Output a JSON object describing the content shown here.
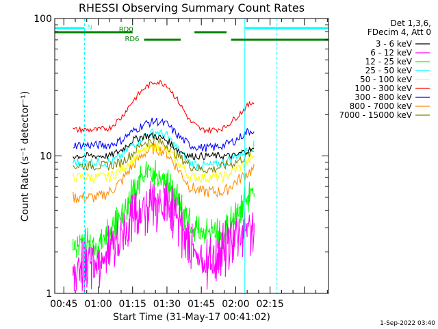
{
  "chart_data": {
    "type": "line",
    "title": "RHESSI Observing Summary Count Rates",
    "xlabel": "Start Time (31-May-17 00:41:02)",
    "ylabel": "Count Rate (s⁻¹ detector⁻¹)",
    "yscale": "log",
    "ylim": [
      1,
      100
    ],
    "xlim_minutes": [
      41.03,
      160.5
    ],
    "x_ticks": [
      "00:45",
      "01:00",
      "01:15",
      "01:30",
      "01:45",
      "02:00",
      "02:15"
    ],
    "y_ticks": [
      "1",
      "10",
      "100"
    ],
    "grid": false,
    "legend_position": "right, outside plot",
    "legend_header": [
      "Det 1,3,6,",
      "FDecim 4, Att 0"
    ],
    "footer_date": "1-Sep-2022 03:40",
    "series": [
      {
        "name": "3 - 6 keV",
        "color": "#000000",
        "x": [
          49,
          55,
          60,
          65,
          70,
          75,
          80,
          85,
          90,
          95,
          100,
          105,
          110,
          115,
          120,
          125,
          128
        ],
        "y": [
          10,
          10,
          10,
          10,
          11,
          13,
          14,
          14,
          13,
          11,
          10,
          10,
          10,
          10,
          10,
          11,
          11
        ]
      },
      {
        "name": "6 - 12 keV",
        "color": "#ff00ff",
        "x": [
          49,
          55,
          60,
          65,
          70,
          75,
          80,
          85,
          90,
          95,
          100,
          105,
          110,
          115,
          120,
          125,
          128
        ],
        "y": [
          1.5,
          2,
          2,
          2.5,
          3,
          4,
          5,
          5.5,
          5,
          4,
          2.5,
          2,
          2,
          2.5,
          3,
          3.5,
          3.5
        ]
      },
      {
        "name": "12 - 25 keV",
        "color": "#00ff00",
        "x": [
          49,
          55,
          60,
          65,
          70,
          75,
          80,
          85,
          90,
          95,
          100,
          105,
          110,
          115,
          120,
          125,
          128
        ],
        "y": [
          2.5,
          2.5,
          2.5,
          3,
          4,
          6,
          8,
          8.5,
          7,
          5,
          3.5,
          3,
          3,
          3,
          4,
          5.5,
          6
        ]
      },
      {
        "name": "25 - 50 keV",
        "color": "#00ffff",
        "x": [
          49,
          55,
          60,
          65,
          70,
          75,
          80,
          85,
          90,
          95,
          100,
          105,
          110,
          115,
          120,
          125,
          128
        ],
        "y": [
          9,
          9,
          9,
          9,
          10,
          12,
          14,
          15,
          14,
          11,
          9,
          8.5,
          8.5,
          9,
          10,
          11,
          12
        ]
      },
      {
        "name": "50 - 100 keV",
        "color": "#ffff00",
        "x": [
          49,
          55,
          60,
          65,
          70,
          75,
          80,
          85,
          90,
          95,
          100,
          105,
          110,
          115,
          120,
          125,
          128
        ],
        "y": [
          7,
          7,
          7,
          7,
          8,
          9.5,
          11,
          12,
          11,
          9,
          7,
          7,
          7,
          7,
          8,
          9,
          10
        ]
      },
      {
        "name": "100 - 300 keV",
        "color": "#ff0000",
        "x": [
          49,
          55,
          60,
          65,
          70,
          75,
          80,
          85,
          90,
          95,
          100,
          105,
          110,
          115,
          120,
          125,
          128
        ],
        "y": [
          15.5,
          15.5,
          15.5,
          16,
          19,
          25,
          31,
          35,
          33,
          25,
          18,
          15.5,
          15.5,
          16,
          19,
          23,
          25
        ]
      },
      {
        "name": "300 - 800 keV",
        "color": "#0000ff",
        "x": [
          49,
          55,
          60,
          65,
          70,
          75,
          80,
          85,
          90,
          95,
          100,
          105,
          110,
          115,
          120,
          125,
          128
        ],
        "y": [
          12,
          12,
          12,
          12,
          13,
          15,
          17,
          18,
          17,
          14,
          12,
          11.5,
          11.5,
          12,
          13,
          15,
          15.5
        ]
      },
      {
        "name": "800 - 7000 keV",
        "color": "#ff8c00",
        "x": [
          49,
          55,
          60,
          65,
          70,
          75,
          80,
          85,
          90,
          95,
          100,
          105,
          110,
          115,
          120,
          125,
          128
        ],
        "y": [
          5,
          5,
          5,
          5.5,
          6.5,
          8.5,
          10.5,
          11.5,
          10.5,
          8,
          6,
          5.5,
          5.5,
          5.5,
          6.5,
          7.5,
          8
        ]
      },
      {
        "name": "7000 - 15000 keV",
        "color": "#808000",
        "x": [
          49,
          55,
          60,
          65,
          70,
          75,
          80,
          85,
          90,
          95,
          100,
          105,
          110,
          115,
          120,
          125,
          128
        ],
        "y": [
          8.5,
          8.5,
          8.5,
          8.5,
          9,
          10.5,
          12.5,
          13,
          12,
          10,
          8.5,
          8,
          8,
          8.5,
          9,
          10,
          11
        ]
      }
    ],
    "annotations": [
      {
        "label": "N",
        "color": "#00ffff",
        "kind": "night",
        "x_start": 41.03,
        "x_end": 54
      },
      {
        "label": "",
        "color": "#00ffff",
        "kind": "night",
        "x_start": 124,
        "x_end": 160.5
      },
      {
        "label": "RD0",
        "color": "#008000",
        "kind": "rate-decimation",
        "x_start": 41.03,
        "x_end": 75
      },
      {
        "label": "RD6",
        "color": "#008000",
        "kind": "rate-decimation",
        "x_start": 80,
        "x_end": 96
      },
      {
        "label": "",
        "color": "#008000",
        "kind": "rate-decimation",
        "x_start": 102,
        "x_end": 116
      },
      {
        "label": "",
        "color": "#008000",
        "kind": "rate-decimation",
        "x_start": 118,
        "x_end": 160.5
      }
    ],
    "vertical_markers": [
      {
        "x": 54,
        "color": "#00ffff",
        "style": "dashed"
      },
      {
        "x": 124,
        "color": "#00ffff",
        "style": "solid"
      },
      {
        "x": 138,
        "color": "#00ffff",
        "style": "dashed"
      }
    ]
  }
}
